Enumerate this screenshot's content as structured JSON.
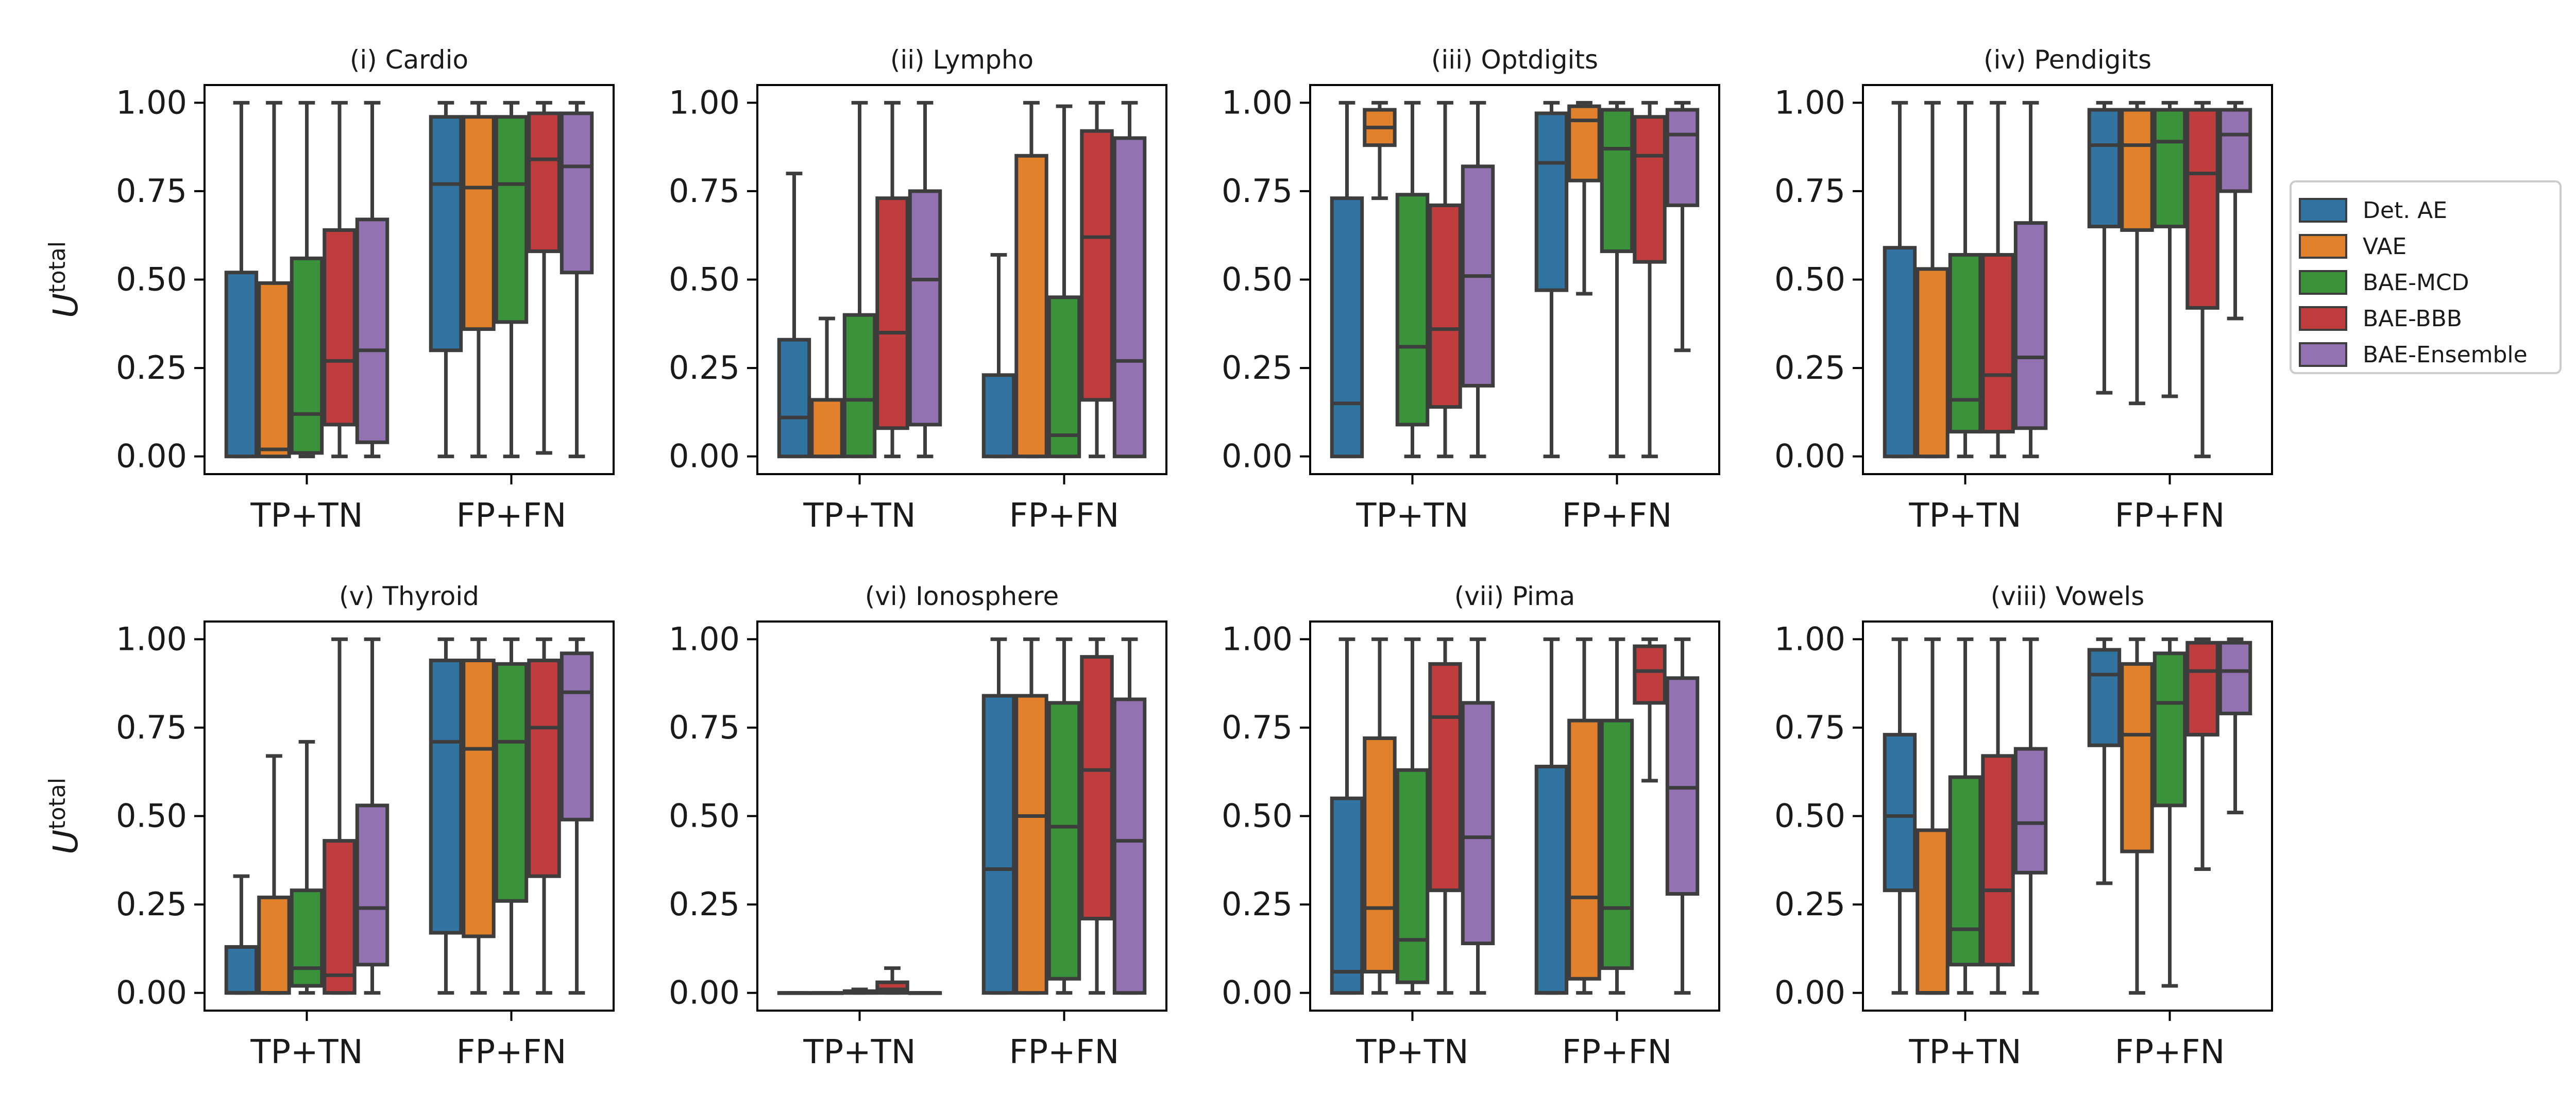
{
  "chart_data": {
    "type": "box",
    "ylabel": "U",
    "ylabel_superscript": "total",
    "categories": [
      "TP+TN",
      "FP+FN"
    ],
    "ylim": [
      -0.05,
      1.05
    ],
    "yticks": [
      0.0,
      0.25,
      0.5,
      0.75,
      1.0
    ],
    "ytick_labels": [
      "0.00",
      "0.25",
      "0.50",
      "0.75",
      "1.00"
    ],
    "legend": {
      "placement": "right",
      "entries": [
        {
          "name": "Det. AE",
          "color": "#3274a1"
        },
        {
          "name": "VAE",
          "color": "#e1812c"
        },
        {
          "name": "BAE-MCD",
          "color": "#3a923a"
        },
        {
          "name": "BAE-BBB",
          "color": "#c03d3e"
        },
        {
          "name": "BAE-Ensemble",
          "color": "#9372b2"
        }
      ]
    },
    "panels": [
      {
        "title": "(i) Cardio",
        "boxes": {
          "TP+TN": [
            [
              0,
              0,
              0,
              0.52,
              1
            ],
            [
              0,
              0,
              0.02,
              0.49,
              1
            ],
            [
              0,
              0.01,
              0.12,
              0.56,
              1
            ],
            [
              0,
              0.09,
              0.27,
              0.64,
              1
            ],
            [
              0,
              0.04,
              0.3,
              0.67,
              1
            ]
          ],
          "FP+FN": [
            [
              0,
              0.3,
              0.77,
              0.96,
              1
            ],
            [
              0,
              0.36,
              0.76,
              0.96,
              1
            ],
            [
              0,
              0.38,
              0.77,
              0.96,
              1
            ],
            [
              0.01,
              0.58,
              0.84,
              0.97,
              1
            ],
            [
              0,
              0.52,
              0.82,
              0.97,
              1
            ]
          ]
        }
      },
      {
        "title": "(ii) Lympho",
        "boxes": {
          "TP+TN": [
            [
              0,
              0,
              0.11,
              0.33,
              0.8
            ],
            [
              0,
              0,
              0,
              0.16,
              0.39
            ],
            [
              0,
              0,
              0.16,
              0.4,
              1
            ],
            [
              0,
              0.08,
              0.35,
              0.73,
              1
            ],
            [
              0,
              0.09,
              0.5,
              0.75,
              1
            ]
          ],
          "FP+FN": [
            [
              0,
              0,
              0,
              0.23,
              0.57
            ],
            [
              0,
              0,
              0,
              0.85,
              1
            ],
            [
              0,
              0,
              0.06,
              0.45,
              0.99
            ],
            [
              0,
              0.16,
              0.62,
              0.92,
              1
            ],
            [
              0,
              0,
              0.27,
              0.9,
              1
            ]
          ]
        }
      },
      {
        "title": "(iii) Optdigits",
        "boxes": {
          "TP+TN": [
            [
              0,
              0,
              0.15,
              0.73,
              1
            ],
            [
              0.73,
              0.88,
              0.93,
              0.98,
              1
            ],
            [
              0,
              0.09,
              0.31,
              0.74,
              1
            ],
            [
              0,
              0.14,
              0.36,
              0.71,
              1
            ],
            [
              0,
              0.2,
              0.51,
              0.82,
              1
            ]
          ],
          "FP+FN": [
            [
              0,
              0.47,
              0.83,
              0.97,
              1
            ],
            [
              0.46,
              0.78,
              0.95,
              0.99,
              1
            ],
            [
              0,
              0.58,
              0.87,
              0.98,
              1
            ],
            [
              0,
              0.55,
              0.85,
              0.96,
              1
            ],
            [
              0.3,
              0.71,
              0.91,
              0.98,
              1
            ]
          ]
        }
      },
      {
        "title": "(iv) Pendigits",
        "boxes": {
          "TP+TN": [
            [
              0,
              0,
              0,
              0.59,
              1
            ],
            [
              0,
              0,
              0,
              0.53,
              1
            ],
            [
              0,
              0.07,
              0.16,
              0.57,
              1
            ],
            [
              0,
              0.07,
              0.23,
              0.57,
              1
            ],
            [
              0,
              0.08,
              0.28,
              0.66,
              1
            ]
          ],
          "FP+FN": [
            [
              0.18,
              0.65,
              0.88,
              0.98,
              1
            ],
            [
              0.15,
              0.64,
              0.88,
              0.98,
              1
            ],
            [
              0.17,
              0.65,
              0.89,
              0.98,
              1
            ],
            [
              0,
              0.42,
              0.8,
              0.98,
              1
            ],
            [
              0.39,
              0.75,
              0.91,
              0.98,
              1
            ]
          ]
        }
      },
      {
        "title": "(v) Thyroid",
        "boxes": {
          "TP+TN": [
            [
              0,
              0,
              0,
              0.13,
              0.33
            ],
            [
              0,
              0,
              0,
              0.27,
              0.67
            ],
            [
              0,
              0.02,
              0.07,
              0.29,
              0.71
            ],
            [
              0,
              0,
              0.05,
              0.43,
              1
            ],
            [
              0,
              0.08,
              0.24,
              0.53,
              1
            ]
          ],
          "FP+FN": [
            [
              0,
              0.17,
              0.71,
              0.94,
              1
            ],
            [
              0,
              0.16,
              0.69,
              0.94,
              1
            ],
            [
              0,
              0.26,
              0.71,
              0.93,
              1
            ],
            [
              0,
              0.33,
              0.75,
              0.94,
              1
            ],
            [
              0,
              0.49,
              0.85,
              0.96,
              1
            ]
          ]
        }
      },
      {
        "title": "(vi) Ionosphere",
        "boxes": {
          "TP+TN": [
            [
              0,
              0,
              0,
              0,
              0
            ],
            [
              0,
              0,
              0,
              0,
              0
            ],
            [
              0,
              0,
              0,
              0.005,
              0.01
            ],
            [
              0,
              0,
              0.01,
              0.03,
              0.07
            ],
            [
              0,
              0,
              0,
              0,
              0
            ]
          ],
          "FP+FN": [
            [
              0,
              0,
              0.35,
              0.84,
              1
            ],
            [
              0,
              0,
              0.5,
              0.84,
              1
            ],
            [
              0,
              0.04,
              0.47,
              0.82,
              1
            ],
            [
              0,
              0.21,
              0.63,
              0.95,
              1
            ],
            [
              0,
              0,
              0.43,
              0.83,
              1
            ]
          ]
        }
      },
      {
        "title": "(vii) Pima",
        "boxes": {
          "TP+TN": [
            [
              0,
              0,
              0.06,
              0.55,
              1
            ],
            [
              0,
              0.06,
              0.24,
              0.72,
              1
            ],
            [
              0,
              0.03,
              0.15,
              0.63,
              1
            ],
            [
              0,
              0.29,
              0.78,
              0.93,
              1
            ],
            [
              0,
              0.14,
              0.44,
              0.82,
              1
            ]
          ],
          "FP+FN": [
            [
              0,
              0,
              0,
              0.64,
              1
            ],
            [
              0,
              0.04,
              0.27,
              0.77,
              1
            ],
            [
              0,
              0.07,
              0.24,
              0.77,
              1
            ],
            [
              0.6,
              0.82,
              0.91,
              0.98,
              1
            ],
            [
              0,
              0.28,
              0.58,
              0.89,
              1
            ]
          ]
        }
      },
      {
        "title": "(viii) Vowels",
        "boxes": {
          "TP+TN": [
            [
              0,
              0.29,
              0.5,
              0.73,
              1
            ],
            [
              0,
              0,
              0,
              0.46,
              1
            ],
            [
              0,
              0.08,
              0.18,
              0.61,
              1
            ],
            [
              0,
              0.08,
              0.29,
              0.67,
              1
            ],
            [
              0,
              0.34,
              0.48,
              0.69,
              1
            ]
          ],
          "FP+FN": [
            [
              0.31,
              0.7,
              0.9,
              0.97,
              1
            ],
            [
              0,
              0.4,
              0.73,
              0.93,
              1
            ],
            [
              0.02,
              0.53,
              0.82,
              0.96,
              1
            ],
            [
              0.35,
              0.73,
              0.91,
              0.99,
              1
            ],
            [
              0.51,
              0.79,
              0.91,
              0.99,
              1
            ]
          ]
        }
      }
    ]
  }
}
